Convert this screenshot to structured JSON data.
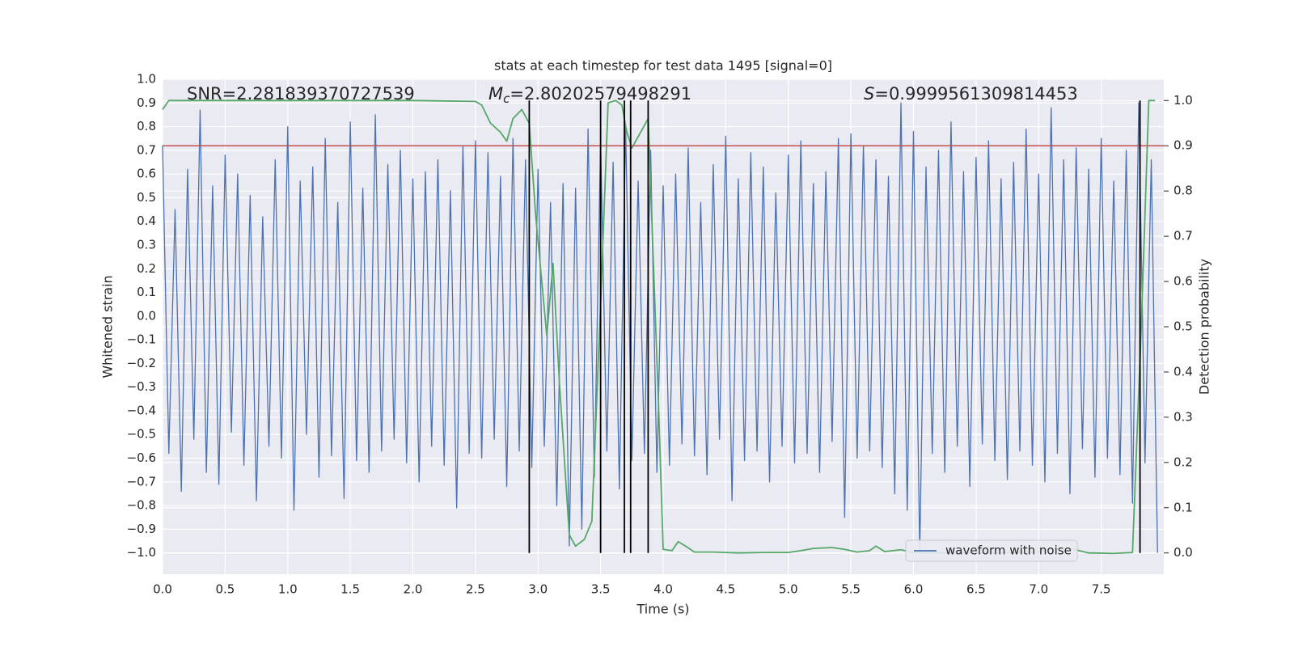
{
  "chart_data": {
    "type": "line",
    "title": "stats at each timestep for test data 1495 [signal=0]",
    "xlabel": "Time (s)",
    "ylabel": "Whitened strain",
    "y2label": "Detection probability",
    "annotations": [
      {
        "text": "SNR=2.281839370727539"
      },
      {
        "symbol": "M",
        "subscript": "c",
        "text": "=2.80202579498291"
      },
      {
        "symbol": "S",
        "text": "=0.9999561309814453"
      }
    ],
    "xlim": [
      0,
      8
    ],
    "xticks": [
      {
        "value": 0,
        "label": "0.0"
      },
      0.5,
      {
        "value": 1,
        "label": "1.0"
      },
      1.5,
      {
        "value": 2,
        "label": "2.0"
      },
      2.5,
      {
        "value": 3,
        "label": "3.0"
      },
      3.5,
      {
        "value": 4,
        "label": "4.0"
      },
      4.5,
      {
        "value": 5,
        "label": "5.0"
      },
      5.5,
      {
        "value": 6,
        "label": "6.0"
      },
      6.5,
      {
        "value": 7,
        "label": "7.0"
      },
      7.5
    ],
    "ylim": [
      -1.09,
      1.0
    ],
    "yticks": [
      {
        "value": -1,
        "label": "−1.0"
      },
      {
        "value": -0.9,
        "label": "−0.9"
      },
      {
        "value": -0.8,
        "label": "−0.8"
      },
      {
        "value": -0.7,
        "label": "−0.7"
      },
      {
        "value": -0.6,
        "label": "−0.6"
      },
      {
        "value": -0.5,
        "label": "−0.5"
      },
      {
        "value": -0.4,
        "label": "−0.4"
      },
      {
        "value": -0.3,
        "label": "−0.3"
      },
      {
        "value": -0.2,
        "label": "−0.2"
      },
      {
        "value": -0.1,
        "label": "−0.1"
      },
      {
        "value": 0,
        "label": "0.0"
      },
      0.1,
      0.2,
      0.3,
      0.4,
      0.5,
      0.6,
      0.7,
      0.8,
      0.9,
      {
        "value": 1,
        "label": "1.0"
      }
    ],
    "y2lim": [
      -0.047,
      1.047
    ],
    "y2ticks": [
      {
        "value": 0,
        "label": "0.0"
      },
      0.1,
      0.2,
      0.3,
      0.4,
      0.5,
      0.6,
      0.7,
      0.8,
      0.9,
      {
        "value": 1,
        "label": "1.0"
      }
    ],
    "grid": true,
    "legend": "lower right",
    "series": [
      {
        "name": "waveform with noise",
        "color": "#4c72b0",
        "x": [
          0,
          0.05,
          0.1,
          0.15,
          0.2,
          0.25,
          0.3,
          0.35,
          0.4,
          0.45,
          0.5,
          0.55,
          0.6,
          0.65,
          0.7,
          0.75,
          0.8,
          0.85,
          0.9,
          0.95,
          1,
          1.05,
          1.1,
          1.15,
          1.2,
          1.25,
          1.3,
          1.35,
          1.4,
          1.45,
          1.5,
          1.55,
          1.6,
          1.65,
          1.7,
          1.75,
          1.8,
          1.85,
          1.9,
          1.95,
          2,
          2.05,
          2.1,
          2.15,
          2.2,
          2.25,
          2.3,
          2.35,
          2.4,
          2.45,
          2.5,
          2.55,
          2.6,
          2.65,
          2.7,
          2.75,
          2.8,
          2.85,
          2.9,
          2.95,
          3,
          3.05,
          3.1,
          3.15,
          3.2,
          3.25,
          3.3,
          3.35,
          3.4,
          3.45,
          3.5,
          3.55,
          3.6,
          3.65,
          3.7,
          3.75,
          3.8,
          3.85,
          3.9,
          3.95,
          4,
          4.05,
          4.1,
          4.15,
          4.2,
          4.25,
          4.3,
          4.35,
          4.4,
          4.45,
          4.5,
          4.55,
          4.6,
          4.65,
          4.7,
          4.75,
          4.8,
          4.85,
          4.9,
          4.95,
          5,
          5.05,
          5.1,
          5.15,
          5.2,
          5.25,
          5.3,
          5.35,
          5.4,
          5.45,
          5.5,
          5.55,
          5.6,
          5.65,
          5.7,
          5.75,
          5.8,
          5.85,
          5.9,
          5.95,
          6,
          6.05,
          6.1,
          6.15,
          6.2,
          6.25,
          6.3,
          6.35,
          6.4,
          6.45,
          6.5,
          6.55,
          6.6,
          6.65,
          6.7,
          6.75,
          6.8,
          6.85,
          6.9,
          6.95,
          7,
          7.05,
          7.1,
          7.15,
          7.2,
          7.25,
          7.3,
          7.35,
          7.4,
          7.45,
          7.5,
          7.55,
          7.6,
          7.65,
          7.7,
          7.75,
          7.8,
          7.85,
          7.9,
          7.95
        ],
        "values": [
          0.72,
          -0.58,
          0.45,
          -0.74,
          0.62,
          -0.52,
          0.87,
          -0.66,
          0.55,
          -0.71,
          0.68,
          -0.49,
          0.6,
          -0.63,
          0.51,
          -0.78,
          0.42,
          -0.55,
          0.66,
          -0.6,
          0.8,
          -0.82,
          0.57,
          -0.5,
          0.63,
          -0.68,
          0.75,
          -0.59,
          0.48,
          -0.77,
          0.82,
          -0.61,
          0.54,
          -0.66,
          0.85,
          -0.57,
          0.64,
          -0.52,
          0.7,
          -0.62,
          0.58,
          -0.7,
          0.61,
          -0.55,
          0.66,
          -0.63,
          0.53,
          -0.81,
          0.72,
          -0.58,
          0.74,
          -0.6,
          0.69,
          -0.52,
          0.59,
          -0.72,
          0.75,
          -0.57,
          0.66,
          -0.64,
          0.62,
          -0.55,
          0.48,
          -0.8,
          0.56,
          -0.97,
          0.54,
          -0.9,
          0.79,
          -0.68,
          0.74,
          -0.57,
          0.65,
          -0.73,
          0.8,
          -0.61,
          0.57,
          -0.58,
          0.7,
          -0.66,
          0.55,
          -0.63,
          0.6,
          -0.54,
          0.71,
          -0.59,
          0.48,
          -0.67,
          0.64,
          -0.52,
          0.76,
          -0.78,
          0.58,
          -0.61,
          0.69,
          -0.57,
          0.63,
          -0.7,
          0.52,
          -0.55,
          0.68,
          -0.62,
          0.74,
          -0.58,
          0.56,
          -0.66,
          0.61,
          -0.53,
          0.75,
          -0.85,
          0.77,
          -0.6,
          0.72,
          -0.57,
          0.66,
          -0.64,
          0.59,
          -0.75,
          0.9,
          -0.82,
          0.78,
          -1.0,
          0.63,
          -0.58,
          0.7,
          -0.66,
          0.82,
          -0.55,
          0.61,
          -0.72,
          0.67,
          -0.54,
          0.74,
          -0.61,
          0.58,
          -0.69,
          0.65,
          -0.57,
          0.79,
          -0.63,
          0.6,
          -0.7,
          0.88,
          -0.58,
          0.66,
          -0.75,
          0.71,
          -0.56,
          0.62,
          -0.68,
          0.75,
          -0.6,
          0.57,
          -0.67,
          0.7,
          -0.79,
          0.9,
          -0.62,
          0.66,
          -1.0
        ]
      },
      {
        "color": "#55a868",
        "axis": "y2",
        "x": [
          0,
          0.05,
          0.5,
          1,
          1.5,
          2,
          2.5,
          2.55,
          2.62,
          2.7,
          2.75,
          2.8,
          2.87,
          2.93,
          2.98,
          3.02,
          3.07,
          3.12,
          3.17,
          3.25,
          3.3,
          3.37,
          3.43,
          3.5,
          3.56,
          3.62,
          3.67,
          3.71,
          3.75,
          3.8,
          3.88,
          3.96,
          4,
          4.07,
          4.12,
          4.18,
          4.25,
          4.4,
          4.6,
          4.8,
          5,
          5.1,
          5.2,
          5.35,
          5.45,
          5.55,
          5.65,
          5.7,
          5.77,
          5.9,
          6,
          6.2,
          6.5,
          7,
          7.1,
          7.25,
          7.4,
          7.6,
          7.75,
          7.82,
          7.88,
          7.93
        ],
        "values": [
          0.98,
          1.0,
          1.0,
          1.0,
          1.0,
          1.0,
          0.998,
          0.99,
          0.95,
          0.93,
          0.91,
          0.96,
          0.98,
          0.95,
          0.75,
          0.63,
          0.48,
          0.64,
          0.38,
          0.04,
          0.015,
          0.03,
          0.07,
          0.55,
          0.995,
          1.0,
          0.99,
          0.93,
          0.895,
          0.92,
          0.96,
          0.35,
          0.008,
          0.005,
          0.025,
          0.015,
          0.002,
          0.002,
          0.0,
          0.001,
          0.001,
          0.005,
          0.01,
          0.012,
          0.008,
          0.002,
          0.005,
          0.015,
          0.003,
          0.007,
          0.001,
          0.0,
          0.0,
          0.002,
          0.01,
          0.01,
          0.0,
          -0.001,
          0.001,
          0.5,
          1.0,
          1.0
        ]
      }
    ],
    "hlines": [
      {
        "value": 0.9,
        "axis": "y2",
        "color": "#c44e52"
      }
    ],
    "vlines": {
      "values": [
        2.93,
        3.5,
        3.69,
        3.74,
        3.88,
        7.81
      ],
      "axis": "y2",
      "range": [
        0,
        1
      ],
      "color": "#000000"
    }
  }
}
